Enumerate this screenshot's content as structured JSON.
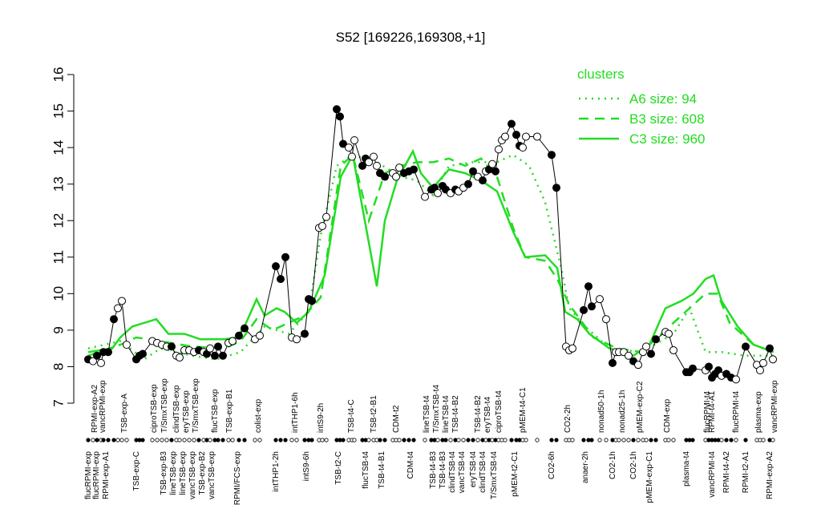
{
  "chart_data": {
    "type": "scatter-lines",
    "title": "S52 [169226,169308,+1]",
    "ylim": [
      7,
      16
    ],
    "yticks": [
      7,
      8,
      9,
      10,
      11,
      12,
      13,
      14,
      15,
      16
    ],
    "xlim": [
      0,
      875
    ],
    "legend_title": "clusters",
    "legend_position": "upper right",
    "legend_color": "#22dd22",
    "points": {
      "x": [
        10,
        16,
        21,
        26,
        29,
        35,
        42,
        47,
        52,
        58,
        70,
        74,
        78,
        90,
        96,
        102,
        108,
        114,
        120,
        124,
        130,
        136,
        142,
        148,
        154,
        158,
        162,
        168,
        172,
        178,
        185,
        190,
        198,
        205,
        218,
        224,
        244,
        250,
        256,
        264,
        270,
        280,
        285,
        289,
        298,
        302,
        307,
        320,
        324,
        328,
        335,
        339,
        342,
        352,
        356,
        360,
        366,
        370,
        374,
        380,
        390,
        394,
        398,
        404,
        410,
        416,
        430,
        438,
        442,
        446,
        452,
        456,
        462,
        468,
        472,
        478,
        484,
        490,
        496,
        502,
        506,
        510,
        514,
        518,
        522,
        526,
        530,
        538,
        544,
        548,
        552,
        556,
        570,
        588,
        594,
        606,
        610,
        614,
        628,
        634,
        638,
        648,
        656,
        664,
        668,
        672,
        678,
        684,
        690,
        696,
        702,
        706,
        712,
        718,
        730,
        734,
        740,
        756,
        760,
        764,
        780,
        784,
        788,
        792,
        796,
        800,
        806,
        812,
        818,
        830,
        844,
        848,
        852,
        860,
        864
      ],
      "values": [
        8.2,
        8.15,
        8.3,
        8.1,
        8.4,
        8.4,
        9.3,
        9.6,
        9.8,
        8.6,
        8.2,
        8.3,
        8.35,
        8.7,
        8.65,
        8.6,
        8.55,
        8.55,
        8.3,
        8.25,
        8.45,
        8.45,
        8.4,
        8.45,
        8.4,
        8.35,
        8.5,
        8.3,
        8.55,
        8.3,
        8.65,
        8.7,
        8.85,
        9.05,
        8.75,
        8.85,
        10.75,
        10.4,
        11.0,
        8.8,
        8.75,
        8.9,
        9.85,
        9.8,
        11.8,
        11.85,
        12.1,
        15.05,
        14.85,
        14.1,
        14.0,
        13.75,
        14.2,
        13.5,
        13.7,
        13.6,
        13.75,
        13.5,
        13.3,
        13.2,
        13.3,
        13.2,
        13.45,
        13.3,
        13.35,
        13.4,
        12.65,
        12.85,
        12.9,
        12.75,
        12.95,
        12.85,
        12.75,
        12.85,
        12.8,
        12.9,
        13.0,
        13.35,
        13.2,
        13.1,
        13.35,
        13.4,
        13.55,
        13.35,
        13.95,
        14.2,
        14.3,
        14.65,
        14.35,
        14.05,
        14.0,
        14.3,
        14.3,
        13.8,
        12.9,
        8.55,
        8.45,
        8.5,
        9.55,
        10.2,
        9.65,
        9.85,
        9.3,
        8.1,
        8.4,
        8.4,
        8.4,
        8.3,
        8.15,
        8.05,
        8.4,
        8.55,
        8.35,
        8.75,
        8.95,
        8.9,
        8.45,
        7.85,
        7.85,
        7.95,
        7.9,
        8.0,
        7.7,
        7.8,
        7.9,
        7.75,
        7.8,
        7.7,
        7.65,
        8.55,
        8.05,
        7.9,
        8.1,
        8.5,
        8.2
      ],
      "filled": [
        true,
        false,
        true,
        false,
        true,
        true,
        true,
        false,
        false,
        false,
        true,
        true,
        true,
        false,
        false,
        false,
        false,
        true,
        false,
        false,
        false,
        false,
        false,
        true,
        false,
        true,
        false,
        true,
        true,
        true,
        false,
        false,
        true,
        true,
        false,
        false,
        true,
        true,
        true,
        false,
        false,
        true,
        true,
        true,
        false,
        false,
        false,
        true,
        true,
        true,
        false,
        false,
        false,
        true,
        true,
        false,
        false,
        false,
        true,
        true,
        false,
        false,
        false,
        true,
        true,
        true,
        false,
        true,
        true,
        false,
        true,
        true,
        false,
        true,
        false,
        false,
        true,
        true,
        false,
        true,
        false,
        true,
        false,
        true,
        false,
        false,
        false,
        true,
        true,
        true,
        false,
        false,
        false,
        true,
        true,
        false,
        false,
        false,
        true,
        true,
        true,
        false,
        false,
        true,
        false,
        false,
        false,
        false,
        true,
        false,
        false,
        false,
        true,
        true,
        false,
        false,
        false,
        true,
        true,
        true,
        false,
        true,
        true,
        true,
        true,
        false,
        true,
        true,
        false,
        true,
        false,
        false,
        false,
        true,
        false
      ]
    },
    "series": [
      {
        "name": "A6 size: 94",
        "color": "#22dd22",
        "style": "dotted",
        "x": [
          10,
          50,
          80,
          100,
          140,
          170,
          200,
          230,
          260,
          285,
          300,
          320,
          340,
          370,
          400,
          420,
          440,
          460,
          490,
          520,
          540,
          560,
          580,
          600,
          610,
          630,
          660,
          700,
          740,
          760,
          780,
          800,
          830,
          865
        ],
        "values": [
          8.5,
          8.7,
          8.2,
          8.5,
          8.3,
          8.2,
          8.4,
          9.1,
          8.9,
          9.5,
          11.6,
          13.5,
          13.8,
          13.6,
          13.2,
          13.1,
          12.7,
          13.5,
          13.6,
          13.6,
          13.8,
          13.5,
          12.5,
          10.7,
          9.6,
          9.1,
          8.5,
          8.4,
          8.9,
          9.6,
          8.4,
          8.4,
          8.3,
          8.3
        ]
      },
      {
        "name": "B3 size: 608",
        "color": "#22dd22",
        "style": "dashed",
        "x": [
          10,
          50,
          70,
          100,
          140,
          180,
          200,
          220,
          240,
          260,
          280,
          300,
          325,
          340,
          360,
          380,
          400,
          420,
          440,
          460,
          480,
          500,
          520,
          540,
          555,
          580,
          595,
          610,
          640,
          670,
          700,
          730,
          760,
          780,
          795,
          810,
          840,
          865
        ],
        "values": [
          8.3,
          8.6,
          8.8,
          8.7,
          8.55,
          8.5,
          8.7,
          9.3,
          9.0,
          9.2,
          9.4,
          9.9,
          13.5,
          13.8,
          12.0,
          13.3,
          13.5,
          13.6,
          13.6,
          13.7,
          13.5,
          13.7,
          13.2,
          11.8,
          11.0,
          10.9,
          10.4,
          9.7,
          8.8,
          8.5,
          8.4,
          9.0,
          9.6,
          10.0,
          10.0,
          9.2,
          8.6,
          8.4
        ]
      },
      {
        "name": "C3 size: 960",
        "color": "#22dd22",
        "style": "solid",
        "x": [
          10,
          40,
          50,
          65,
          95,
          110,
          130,
          150,
          180,
          195,
          205,
          220,
          230,
          245,
          255,
          270,
          285,
          305,
          325,
          340,
          355,
          370,
          380,
          395,
          415,
          425,
          440,
          460,
          480,
          500,
          520,
          540,
          555,
          580,
          595,
          605,
          620,
          635,
          660,
          690,
          710,
          730,
          750,
          765,
          780,
          790,
          800,
          820,
          840,
          865
        ],
        "values": [
          8.4,
          8.5,
          8.8,
          9.1,
          9.3,
          8.9,
          8.9,
          8.75,
          8.75,
          8.8,
          9.1,
          9.85,
          9.4,
          9.6,
          9.5,
          9.2,
          9.5,
          10.5,
          13.2,
          13.8,
          12.0,
          10.2,
          12.0,
          13.1,
          13.9,
          13.3,
          12.9,
          13.4,
          13.3,
          13.1,
          12.8,
          11.7,
          11.0,
          11.05,
          10.7,
          9.5,
          9.3,
          8.9,
          8.5,
          8.3,
          8.6,
          9.6,
          9.8,
          10.0,
          10.4,
          10.5,
          9.8,
          9.1,
          8.6,
          8.4
        ]
      }
    ],
    "labels_top": {
      "text": [
        "RPMI-exp-A2",
        "vancRPMI-exp",
        "TSB-exp-A",
        "ciproTSB-exp",
        "T/SmxTSB-exp",
        "clindTSB-exp",
        "eryTSB-exp",
        "T/SmxTSB-exp",
        "flucTSB-exp",
        "TSB-exp-B1",
        "colist-exp",
        "intTHP1-6h",
        "intS9-2h",
        "TSB-t4-C",
        "TSB-t2-B1",
        "CDM-t2",
        "lineTSB-t4",
        "T/SmxTSB-t4",
        "lineTSB-t4",
        "TSB-t4-B2",
        "TSB-t4-B2",
        "eryTSB-t4",
        "ciproTSB-t4",
        "pMEM-t4-C1",
        "CO2-2h",
        "nonad50-1h",
        "nonad25-1h",
        "pMEM-exp-C2",
        "CDM-exp",
        "flucRPMI-t4",
        "RPMI-t4-A1",
        "flucRPMI-t4",
        "plasma-exp",
        "vancRPMI-exp"
      ],
      "x": [
        18,
        28,
        55,
        92,
        105,
        120,
        132,
        144,
        168,
        186,
        222,
        268,
        300,
        338,
        366,
        394,
        432,
        444,
        456,
        468,
        496,
        508,
        522,
        552,
        608,
        650,
        676,
        698,
        732,
        782,
        788,
        818,
        846,
        866
      ]
    },
    "labels_bottom": {
      "text": [
        "flucRPMI-exp",
        "flucRPMI-exp",
        "RPMI-exp-A1",
        "TSB-exp-C",
        "TSB-exp-B3",
        "lineTSB-exp",
        "lineTSB-exp",
        "vancTSB-exp",
        "TSB-exp-B2",
        "vancTSB-exp",
        "RPMI/FCS-exp",
        "intTHP1-2h",
        "intS9-6h",
        "TSB-t2-C",
        "flucTSB-t4",
        "TSB-t4-B1",
        "CDM-t4",
        "TSB-t4-B3",
        "TSB-t4-B3",
        "clindTSB-t4",
        "vancTSB-t4",
        "eryTSB-t4",
        "clindTSB-t4",
        "T/SmxTSB-t4",
        "pMEM-t2-C1",
        "CO2-6h",
        "anaer-2h",
        "CO2-1h",
        "CO2-1h",
        "pMEM-exp-C1",
        "plasma-t4",
        "vancRPMI-t4",
        "RPMI-t4-A2",
        "RPMI-t2-A1",
        "RPMI-exp-A2"
      ],
      "x": [
        10,
        20,
        32,
        70,
        104,
        116,
        128,
        140,
        152,
        164,
        196,
        244,
        282,
        322,
        356,
        376,
        412,
        440,
        452,
        464,
        476,
        490,
        502,
        516,
        542,
        588,
        630,
        664,
        690,
        710,
        756,
        788,
        806,
        830,
        860
      ]
    }
  }
}
